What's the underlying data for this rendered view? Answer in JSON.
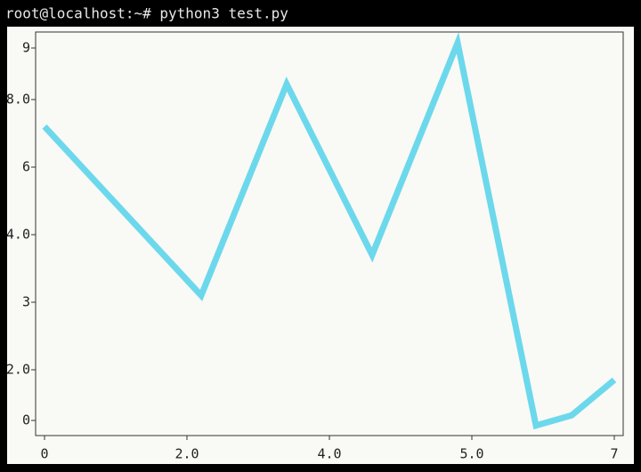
{
  "header": {
    "command": "root@localhost:~# python3 test.py"
  },
  "chart_data": {
    "type": "line",
    "x": [
      0,
      2.2,
      3.4,
      4.3,
      4.9,
      5.9,
      6.4,
      7.0
    ],
    "series": [
      {
        "color": "#6cd8ec",
        "values": [
          7.2,
          3.1,
          8.3,
          3.7,
          9.1,
          -0.2,
          0.2,
          1.6
        ]
      }
    ],
    "xlim": [
      -0.1,
      7.1
    ],
    "ylim": [
      -0.6,
      9.3
    ],
    "xticks": [
      0,
      {
        "value": 2,
        "label": "2.0"
      },
      {
        "value": 4,
        "label": "4.0"
      },
      {
        "value": 5,
        "label": "5.0"
      },
      7
    ],
    "yticks": [
      0,
      {
        "value": 2,
        "label": "2.0"
      },
      3,
      {
        "value": 4,
        "label": "4.0"
      },
      6,
      {
        "value": 8,
        "label": "8.0"
      },
      9
    ]
  }
}
